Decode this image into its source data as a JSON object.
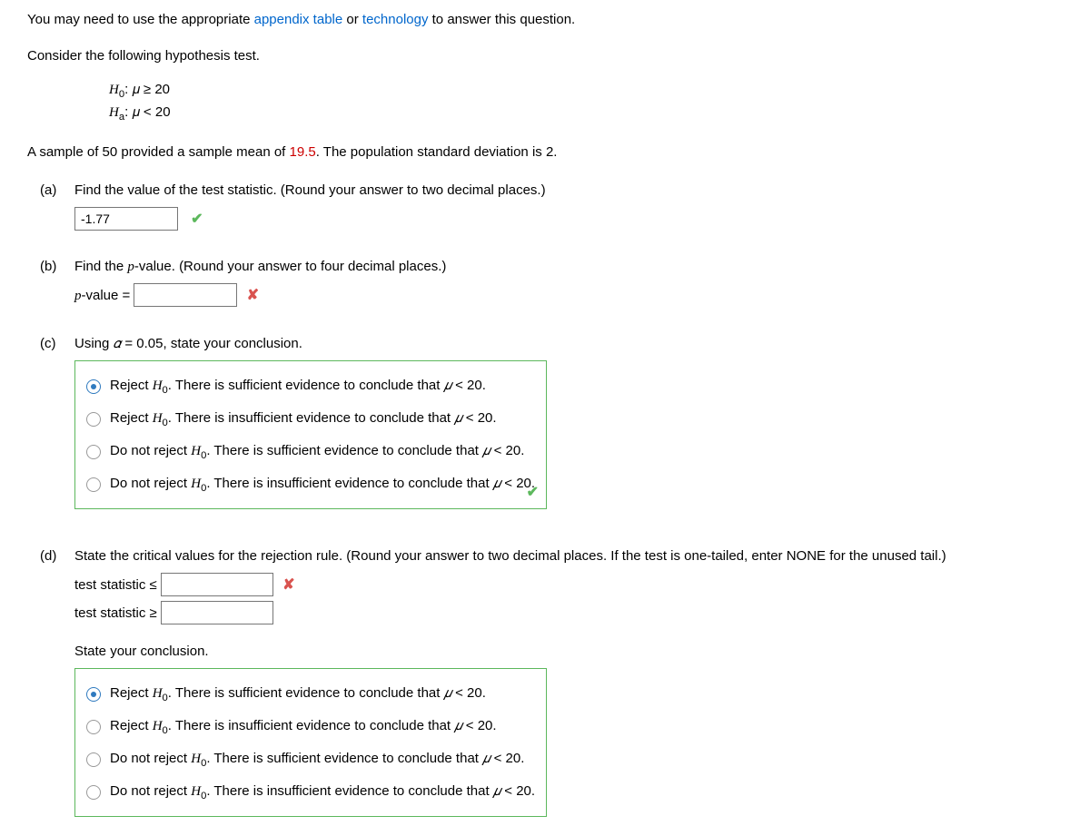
{
  "intro": {
    "pre": "You may need to use the appropriate ",
    "link1": "appendix table",
    "mid": " or ",
    "link2": "technology",
    "post": " to answer this question."
  },
  "consider": "Consider the following hypothesis test.",
  "hypotheses": {
    "h0_symbol": "H",
    "h0_sub": "0",
    "h0_rest": ": 𝜇 ≥ 20",
    "ha_symbol": "H",
    "ha_sub": "a",
    "ha_rest": ": 𝜇 < 20"
  },
  "sample_line_pre": "A sample of 50 provided a sample mean of ",
  "sample_mean": "19.5",
  "sample_line_post": ". The population standard deviation is 2.",
  "parts": {
    "a": {
      "label": "(a)",
      "text": "Find the value of the test statistic. (Round your answer to two decimal places.)",
      "value": "-1.77",
      "feedback": "check"
    },
    "b": {
      "label": "(b)",
      "text_pre": "Find the ",
      "text_ital": "p",
      "text_post": "-value. (Round your answer to four decimal places.)",
      "plabel_pre": "p",
      "plabel_post": "-value = ",
      "value": "",
      "feedback": "cross"
    },
    "c": {
      "label": "(c)",
      "text_pre": "Using ",
      "alpha": "𝛼",
      "text_post": " = 0.05, state your conclusion.",
      "choices": [
        {
          "pre": "Reject ",
          "H": "H",
          "sub": "0",
          "post1": ". There is sufficient evidence to conclude that ",
          "mu": "𝜇",
          "post2": " < 20.",
          "selected": true
        },
        {
          "pre": "Reject ",
          "H": "H",
          "sub": "0",
          "post1": ". There is insufficient evidence to conclude that ",
          "mu": "𝜇",
          "post2": " < 20.",
          "selected": false
        },
        {
          "pre": "Do not reject ",
          "H": "H",
          "sub": "0",
          "post1": ". There is sufficient evidence to conclude that ",
          "mu": "𝜇",
          "post2": " < 20.",
          "selected": false
        },
        {
          "pre": "Do not reject ",
          "H": "H",
          "sub": "0",
          "post1": ". There is insufficient evidence to conclude that ",
          "mu": "𝜇",
          "post2": " < 20.",
          "selected": false
        }
      ],
      "box_check": true
    },
    "d": {
      "label": "(d)",
      "text": "State the critical values for the rejection rule. (Round your answer to two decimal places. If the test is one-tailed, enter NONE for the unused tail.)",
      "row1_label": "test statistic ≤",
      "row1_value": "",
      "row1_feedback": "cross",
      "row2_label": "test statistic ≥",
      "row2_value": "",
      "concl_label": "State your conclusion.",
      "choices": [
        {
          "pre": "Reject ",
          "H": "H",
          "sub": "0",
          "post1": ". There is sufficient evidence to conclude that ",
          "mu": "𝜇",
          "post2": " < 20.",
          "selected": true
        },
        {
          "pre": "Reject ",
          "H": "H",
          "sub": "0",
          "post1": ". There is insufficient evidence to conclude that ",
          "mu": "𝜇",
          "post2": " < 20.",
          "selected": false
        },
        {
          "pre": "Do not reject ",
          "H": "H",
          "sub": "0",
          "post1": ". There is sufficient evidence to conclude that ",
          "mu": "𝜇",
          "post2": " < 20.",
          "selected": false
        },
        {
          "pre": "Do not reject ",
          "H": "H",
          "sub": "0",
          "post1": ". There is insufficient evidence to conclude that ",
          "mu": "𝜇",
          "post2": " < 20.",
          "selected": false
        }
      ]
    }
  },
  "colors": {
    "link": "#0066cc",
    "error_red": "#cc0000",
    "check_green": "#5cb85c",
    "cross_red": "#d9534f",
    "radio_blue": "#2f7abf",
    "border_gray": "#767676"
  }
}
